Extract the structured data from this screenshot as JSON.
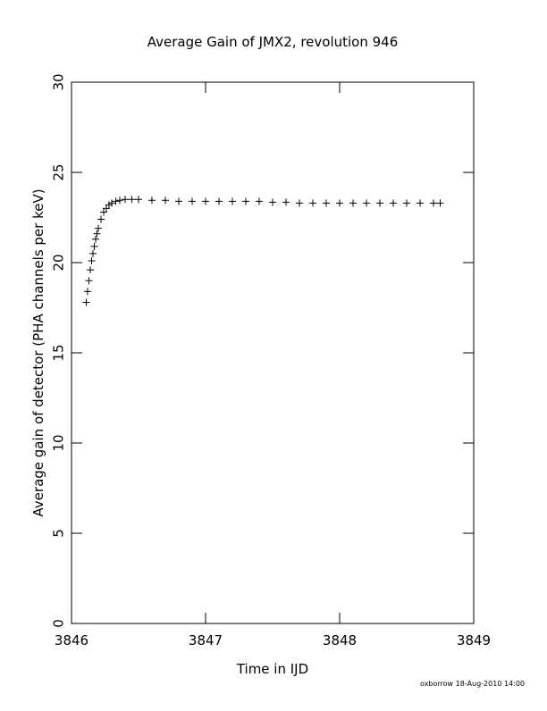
{
  "chart_data": {
    "type": "scatter",
    "title": "Average Gain of JMX2, revolution 946",
    "x_label": "Time in IJD",
    "y_label": "Average gain of detector (PHA channels per keV)",
    "footer": "oxborrow 18-Aug-2010 14:00",
    "color": "#000000",
    "marker": "plus",
    "xlim": [
      3846,
      3849
    ],
    "ylim": [
      0,
      30
    ],
    "xticks": [
      3846,
      3847,
      3848,
      3849
    ],
    "yticks": [
      0,
      5,
      10,
      15,
      20,
      25,
      30
    ],
    "x": [
      3846.11,
      3846.12,
      3846.13,
      3846.14,
      3846.15,
      3846.16,
      3846.17,
      3846.18,
      3846.19,
      3846.2,
      3846.22,
      3846.24,
      3846.26,
      3846.28,
      3846.3,
      3846.33,
      3846.36,
      3846.4,
      3846.45,
      3846.5,
      3846.6,
      3846.7,
      3846.8,
      3846.9,
      3847.0,
      3847.1,
      3847.2,
      3847.3,
      3847.4,
      3847.5,
      3847.6,
      3847.7,
      3847.8,
      3847.9,
      3848.0,
      3848.1,
      3848.2,
      3848.3,
      3848.4,
      3848.5,
      3848.6,
      3848.7,
      3848.75
    ],
    "values": [
      17.8,
      18.4,
      19.0,
      19.6,
      20.1,
      20.5,
      20.9,
      21.3,
      21.6,
      21.9,
      22.4,
      22.8,
      23.0,
      23.2,
      23.3,
      23.4,
      23.45,
      23.5,
      23.5,
      23.5,
      23.45,
      23.45,
      23.4,
      23.4,
      23.4,
      23.4,
      23.4,
      23.4,
      23.4,
      23.35,
      23.35,
      23.3,
      23.3,
      23.3,
      23.3,
      23.3,
      23.3,
      23.3,
      23.3,
      23.3,
      23.3,
      23.3,
      23.3
    ]
  }
}
